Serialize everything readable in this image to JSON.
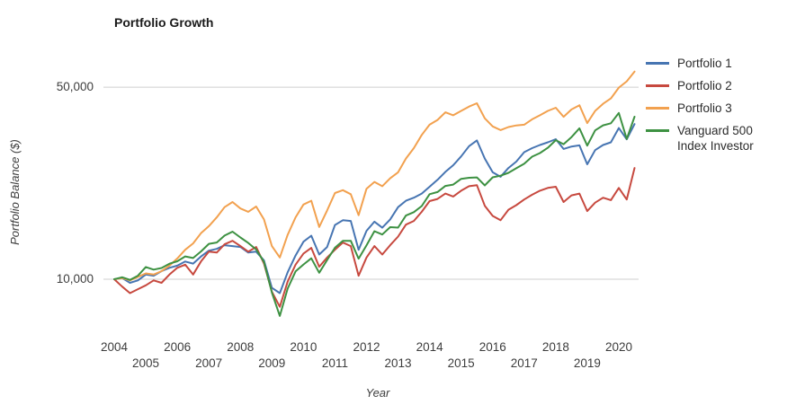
{
  "chart_data": {
    "type": "line",
    "title": "Portfolio Growth",
    "xlabel": "Year",
    "ylabel": "Portfolio Balance ($)",
    "yscale": "log",
    "ylim": [
      6500,
      62000
    ],
    "grid": "horizontal",
    "legend_position": "right",
    "yticks": [
      {
        "value": 10000,
        "label": "10,000"
      },
      {
        "value": 50000,
        "label": "50,000"
      }
    ],
    "xticks": [
      2004,
      2005,
      2006,
      2007,
      2008,
      2009,
      2010,
      2011,
      2012,
      2013,
      2014,
      2015,
      2016,
      2017,
      2018,
      2019,
      2020
    ],
    "x_start": 2004,
    "x_step_years": 0.25,
    "x_end": 2020.5,
    "series": [
      {
        "name": "Portfolio 1",
        "color": "#4775b2",
        "values": [
          10000,
          10100,
          9700,
          9900,
          10400,
          10300,
          10700,
          11000,
          11200,
          11600,
          11400,
          12100,
          12700,
          12900,
          13300,
          13200,
          13100,
          12500,
          12600,
          11700,
          9300,
          8900,
          10600,
          12200,
          13700,
          14400,
          12300,
          13100,
          15750,
          16400,
          16300,
          12800,
          15000,
          16200,
          15400,
          16500,
          18300,
          19300,
          19800,
          20500,
          21700,
          23000,
          24600,
          26000,
          28000,
          30500,
          32000,
          27500,
          24500,
          23600,
          25400,
          26800,
          29000,
          30000,
          30800,
          31500,
          32350,
          29800,
          30400,
          30700,
          26200,
          29500,
          30800,
          31500,
          35500,
          32300,
          36700
        ]
      },
      {
        "name": "Portfolio 2",
        "color": "#c7493f",
        "values": [
          10000,
          9400,
          8900,
          9200,
          9500,
          9900,
          9700,
          10400,
          11000,
          11300,
          10400,
          11600,
          12600,
          12500,
          13400,
          13800,
          13200,
          12600,
          13100,
          11400,
          9000,
          7940,
          9800,
          11300,
          12400,
          13000,
          11100,
          12000,
          12800,
          13600,
          13200,
          10300,
          12000,
          13200,
          12300,
          13300,
          14300,
          15800,
          16300,
          17600,
          19250,
          19600,
          20500,
          20000,
          21000,
          21800,
          22000,
          18500,
          17000,
          16400,
          17900,
          18600,
          19500,
          20300,
          21000,
          21500,
          21700,
          19100,
          20200,
          20500,
          17700,
          19000,
          19800,
          19400,
          21500,
          19500,
          25400
        ]
      },
      {
        "name": "Portfolio 3",
        "color": "#f2a14f",
        "values": [
          10000,
          10100,
          9900,
          10200,
          10500,
          10400,
          10700,
          11200,
          11900,
          12800,
          13500,
          14700,
          15600,
          16800,
          18300,
          19100,
          18100,
          17600,
          18400,
          16500,
          13200,
          12000,
          14500,
          16800,
          18700,
          19300,
          15500,
          17800,
          20600,
          21100,
          20400,
          17100,
          21350,
          22600,
          21800,
          23300,
          24500,
          27500,
          30000,
          33500,
          36500,
          38000,
          40500,
          39500,
          41000,
          42500,
          43700,
          38500,
          36000,
          34900,
          35800,
          36300,
          36500,
          38200,
          39500,
          41000,
          42100,
          39000,
          41500,
          43000,
          37000,
          41000,
          43500,
          45500,
          49800,
          52500,
          57000
        ]
      },
      {
        "name": "Vanguard 500 Index Investor",
        "color": "#3d9142",
        "values": [
          10000,
          10170,
          9950,
          10300,
          11080,
          10840,
          10990,
          11390,
          11620,
          12110,
          11940,
          12620,
          13450,
          13600,
          14420,
          14900,
          14190,
          13550,
          12830,
          11560,
          8940,
          7350,
          9240,
          10680,
          11310,
          11920,
          10560,
          11750,
          13020,
          13790,
          13800,
          11880,
          13290,
          14960,
          14550,
          15470,
          15410,
          17050,
          17540,
          18460,
          20400,
          20770,
          21860,
          22100,
          23190,
          23400,
          23470,
          21960,
          23500,
          23810,
          24400,
          25350,
          26310,
          27920,
          28780,
          30080,
          32070,
          31000,
          32900,
          35430,
          30650,
          34820,
          36320,
          36940,
          40300,
          32400,
          39050
        ]
      }
    ]
  }
}
